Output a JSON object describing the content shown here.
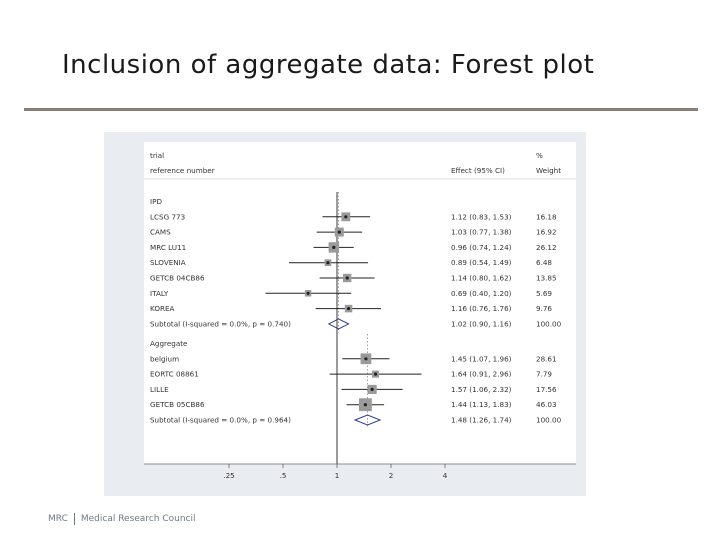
{
  "slide": {
    "title": "Inclusion of aggregate data: Forest plot"
  },
  "footer": {
    "org_abbrev": "MRC",
    "org_name": "Medical Research Council"
  },
  "colors": {
    "plot_bg": "#e9ecf0",
    "panel_bg": "#ffffff",
    "title_rule": "#8a7f76",
    "marker_square": "#9a9a9a",
    "point": "#222222",
    "line": "#222222",
    "dotted_line": "#888888",
    "diamond": "#2c3e8f"
  },
  "chart_data": {
    "type": "forest",
    "x_scale": "log",
    "x_ticks": [
      {
        "value": 0.25,
        "label": ".25"
      },
      {
        "value": 0.5,
        "label": ".5"
      },
      {
        "value": 1,
        "label": "1"
      },
      {
        "value": 2,
        "label": "2"
      },
      {
        "value": 4,
        "label": "4"
      }
    ],
    "reference_line": 1,
    "headers": {
      "col1_line1": "trial",
      "col1_line2": "reference number",
      "col2": "Effect (95% CI)",
      "col3_line1": "%",
      "col3_line2": "Weight"
    },
    "groups": [
      {
        "name": "IPD",
        "overall_line": 1.02,
        "rows": [
          {
            "label": "LCSG 773",
            "effect": 1.12,
            "lower": 0.83,
            "upper": 1.53,
            "ci_text": "1.12 (0.83, 1.53)",
            "weight": 16.18,
            "weight_text": "16.18"
          },
          {
            "label": "CAMS",
            "effect": 1.03,
            "lower": 0.77,
            "upper": 1.38,
            "ci_text": "1.03 (0.77, 1.38)",
            "weight": 16.92,
            "weight_text": "16.92"
          },
          {
            "label": "MRC LU11",
            "effect": 0.96,
            "lower": 0.74,
            "upper": 1.24,
            "ci_text": "0.96 (0.74, 1.24)",
            "weight": 26.12,
            "weight_text": "26.12"
          },
          {
            "label": "SLOVENIA",
            "effect": 0.89,
            "lower": 0.54,
            "upper": 1.49,
            "ci_text": "0.89 (0.54, 1.49)",
            "weight": 6.48,
            "weight_text": "6.48"
          },
          {
            "label": "GETCB 04CB86",
            "effect": 1.14,
            "lower": 0.8,
            "upper": 1.62,
            "ci_text": "1.14 (0.80, 1.62)",
            "weight": 13.85,
            "weight_text": "13.85"
          },
          {
            "label": "ITALY",
            "effect": 0.69,
            "lower": 0.4,
            "upper": 1.2,
            "ci_text": "0.69 (0.40, 1.20)",
            "weight": 5.69,
            "weight_text": "5.69"
          },
          {
            "label": "KOREA",
            "effect": 1.16,
            "lower": 0.76,
            "upper": 1.76,
            "ci_text": "1.16 (0.76, 1.76)",
            "weight": 9.76,
            "weight_text": "9.76"
          }
        ],
        "subtotal": {
          "label": "Subtotal (I-squared = 0.0%, p = 0.740)",
          "effect": 1.02,
          "lower": 0.9,
          "upper": 1.16,
          "ci_text": "1.02 (0.90, 1.16)",
          "weight_text": "100.00"
        }
      },
      {
        "name": "Aggregate",
        "overall_line": 1.48,
        "rows": [
          {
            "label": "belgium",
            "effect": 1.45,
            "lower": 1.07,
            "upper": 1.96,
            "ci_text": "1.45 (1.07, 1.96)",
            "weight": 28.61,
            "weight_text": "28.61"
          },
          {
            "label": "EORTC 08861",
            "effect": 1.64,
            "lower": 0.91,
            "upper": 2.96,
            "ci_text": "1.64 (0.91, 2.96)",
            "weight": 7.79,
            "weight_text": "7.79"
          },
          {
            "label": "LILLE",
            "effect": 1.57,
            "lower": 1.06,
            "upper": 2.32,
            "ci_text": "1.57 (1.06, 2.32)",
            "weight": 17.56,
            "weight_text": "17.56"
          },
          {
            "label": "GETCB 05CB86",
            "effect": 1.44,
            "lower": 1.13,
            "upper": 1.83,
            "ci_text": "1.44 (1.13, 1.83)",
            "weight": 46.03,
            "weight_text": "46.03"
          }
        ],
        "subtotal": {
          "label": "Subtotal (I-squared = 0.0%, p = 0.964)",
          "effect": 1.48,
          "lower": 1.26,
          "upper": 1.74,
          "ci_text": "1.48 (1.26, 1.74)",
          "weight_text": "100.00"
        }
      }
    ]
  }
}
